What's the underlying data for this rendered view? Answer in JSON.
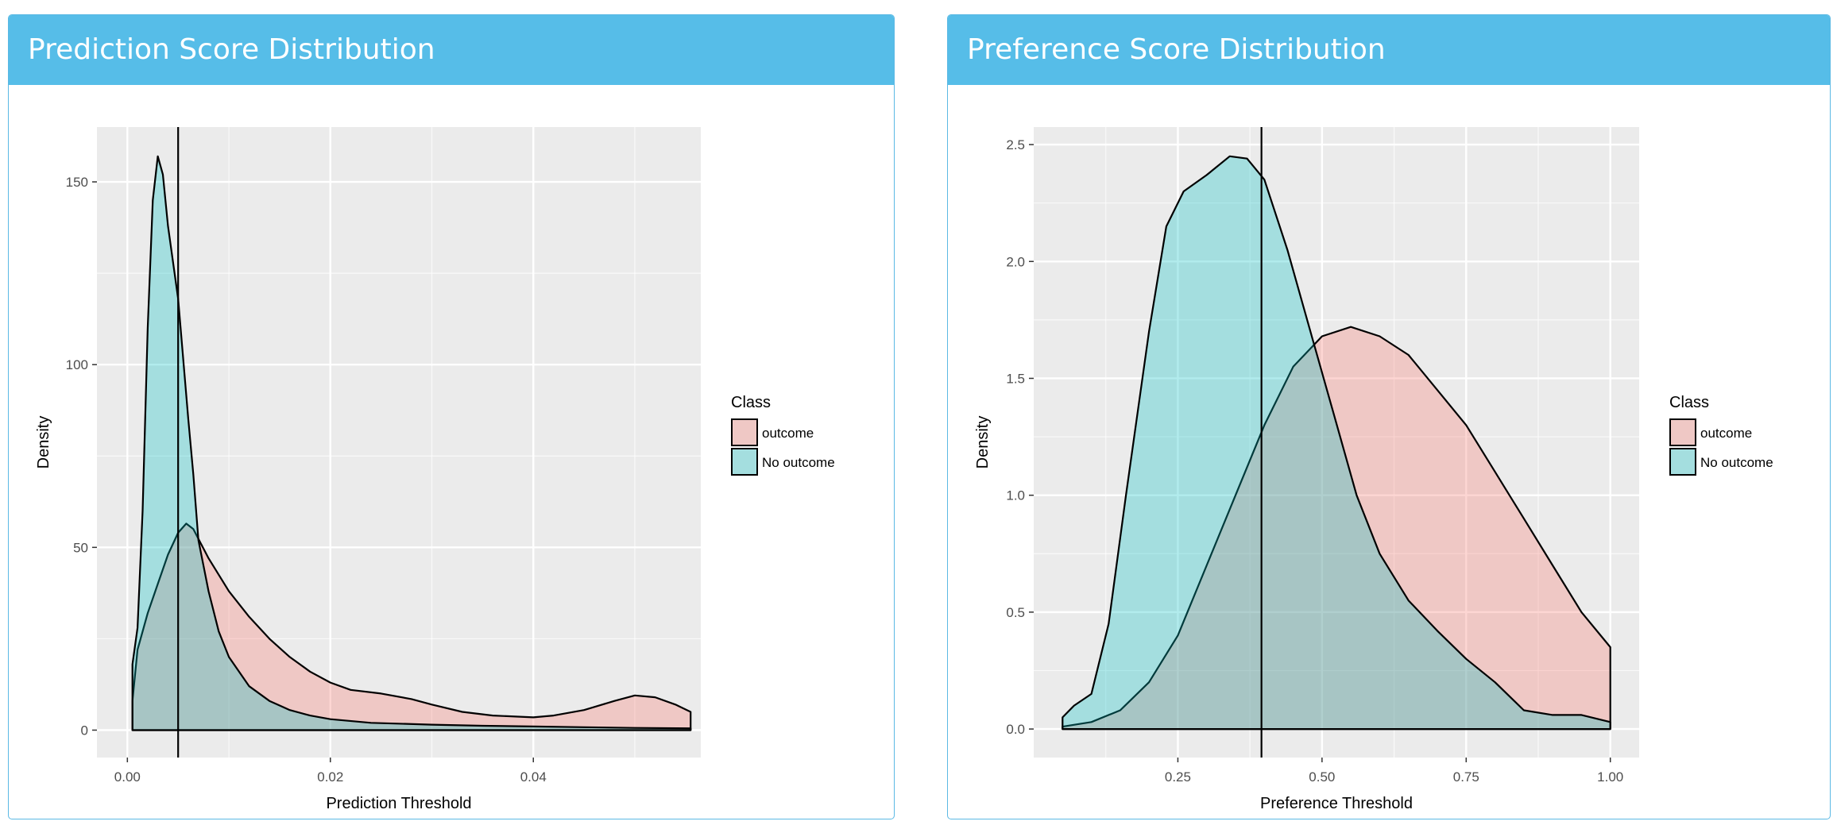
{
  "panels": [
    {
      "title": "Prediction Score Distribution"
    },
    {
      "title": "Preference Score Distribution"
    }
  ],
  "colors": {
    "header": "#56bde8",
    "panel_border": "#5bb9e4",
    "plot_background": "#ebebeb",
    "grid": "#ffffff",
    "outcome_fill": "#F8766D",
    "no_outcome_fill": "#00BFC4",
    "outline": "#000000"
  },
  "chart_data": [
    {
      "type": "area",
      "title": "",
      "xlabel": "Prediction Threshold",
      "ylabel": "Density",
      "xlim": [
        -0.003,
        0.0565
      ],
      "ylim": [
        -7.5,
        165
      ],
      "x_ticks": [
        0.0,
        0.02,
        0.04
      ],
      "x_tick_labels": [
        "0.00",
        "0.02",
        "0.04"
      ],
      "y_ticks": [
        0,
        50,
        100,
        150
      ],
      "y_tick_labels": [
        "0",
        "50",
        "100",
        "150"
      ],
      "grid": true,
      "threshold_line_x": 0.005,
      "legend": {
        "title": "Class",
        "position": "right",
        "entries": [
          "outcome",
          "No outcome"
        ]
      },
      "series": [
        {
          "name": "outcome",
          "color": "#F8766D",
          "x": [
            0.0005,
            0.001,
            0.002,
            0.003,
            0.004,
            0.005,
            0.0058,
            0.0065,
            0.008,
            0.01,
            0.012,
            0.014,
            0.016,
            0.018,
            0.02,
            0.022,
            0.025,
            0.028,
            0.03,
            0.033,
            0.036,
            0.04,
            0.042,
            0.045,
            0.048,
            0.05,
            0.052,
            0.054,
            0.0555
          ],
          "y": [
            8,
            22,
            32,
            40,
            48,
            54,
            56.5,
            55,
            47,
            38,
            31,
            25,
            20,
            16,
            13,
            11,
            10,
            8.5,
            7,
            5,
            4,
            3.5,
            4,
            5.5,
            8,
            9.5,
            9,
            7,
            5
          ]
        },
        {
          "name": "No outcome",
          "color": "#00BFC4",
          "x": [
            0.0005,
            0.001,
            0.0015,
            0.002,
            0.0025,
            0.003,
            0.0035,
            0.004,
            0.0045,
            0.005,
            0.006,
            0.0065,
            0.007,
            0.008,
            0.009,
            0.01,
            0.012,
            0.014,
            0.016,
            0.018,
            0.02,
            0.024,
            0.03,
            0.035,
            0.04,
            0.045,
            0.05,
            0.0555
          ],
          "y": [
            18,
            28,
            60,
            110,
            145,
            157,
            152,
            138,
            128,
            118,
            85,
            70,
            52,
            38,
            27,
            20,
            12,
            8,
            5.5,
            4,
            3,
            2,
            1.5,
            1.2,
            1,
            0.8,
            0.6,
            0.5
          ]
        }
      ]
    },
    {
      "type": "area",
      "title": "",
      "xlabel": "Preference Threshold",
      "ylabel": "Density",
      "xlim": [
        0.0,
        1.05
      ],
      "ylim": [
        -0.122,
        2.575
      ],
      "x_ticks": [
        0.25,
        0.5,
        0.75,
        1.0
      ],
      "x_tick_labels": [
        "0.25",
        "0.50",
        "0.75",
        "1.00"
      ],
      "y_ticks": [
        0.0,
        0.5,
        1.0,
        1.5,
        2.0,
        2.5
      ],
      "y_tick_labels": [
        "0.0",
        "0.5",
        "1.0",
        "1.5",
        "2.0",
        "2.5"
      ],
      "grid": true,
      "threshold_line_x": 0.395,
      "legend": {
        "title": "Class",
        "position": "right",
        "entries": [
          "outcome",
          "No outcome"
        ]
      },
      "series": [
        {
          "name": "outcome",
          "color": "#F8766D",
          "x": [
            0.05,
            0.1,
            0.15,
            0.2,
            0.25,
            0.3,
            0.35,
            0.4,
            0.45,
            0.5,
            0.55,
            0.6,
            0.65,
            0.7,
            0.75,
            0.8,
            0.85,
            0.9,
            0.95,
            1.0
          ],
          "y": [
            0.01,
            0.03,
            0.08,
            0.2,
            0.4,
            0.7,
            1.0,
            1.3,
            1.55,
            1.68,
            1.72,
            1.68,
            1.6,
            1.45,
            1.3,
            1.1,
            0.9,
            0.7,
            0.5,
            0.35
          ]
        },
        {
          "name": "No outcome",
          "color": "#00BFC4",
          "x": [
            0.05,
            0.07,
            0.1,
            0.13,
            0.16,
            0.2,
            0.23,
            0.26,
            0.3,
            0.34,
            0.37,
            0.4,
            0.44,
            0.48,
            0.52,
            0.56,
            0.6,
            0.65,
            0.7,
            0.75,
            0.8,
            0.85,
            0.9,
            0.95,
            1.0
          ],
          "y": [
            0.05,
            0.1,
            0.15,
            0.45,
            1.0,
            1.7,
            2.15,
            2.3,
            2.37,
            2.45,
            2.44,
            2.35,
            2.05,
            1.7,
            1.35,
            1.0,
            0.75,
            0.55,
            0.42,
            0.3,
            0.2,
            0.08,
            0.06,
            0.06,
            0.03
          ]
        }
      ]
    }
  ]
}
